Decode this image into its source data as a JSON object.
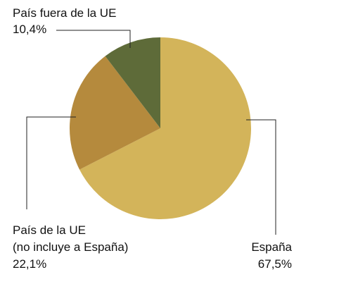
{
  "chart_data": {
    "type": "pie",
    "title": "",
    "slices": [
      {
        "label": "España",
        "value": 67.5,
        "value_label": "67,5%",
        "color": "#D3B45A"
      },
      {
        "label": "País de la UE (no incluye a España)",
        "label_lines": [
          "País de la UE",
          "(no incluye a España)"
        ],
        "value": 22.1,
        "value_label": "22,1%",
        "color": "#B58A3D"
      },
      {
        "label": "País fuera de la UE",
        "value": 10.4,
        "value_label": "10,4%",
        "color": "#5E6B39"
      }
    ],
    "start_angle": "12 o'clock",
    "direction": "clockwise",
    "legend": "none (direct labels with leader lines)"
  }
}
